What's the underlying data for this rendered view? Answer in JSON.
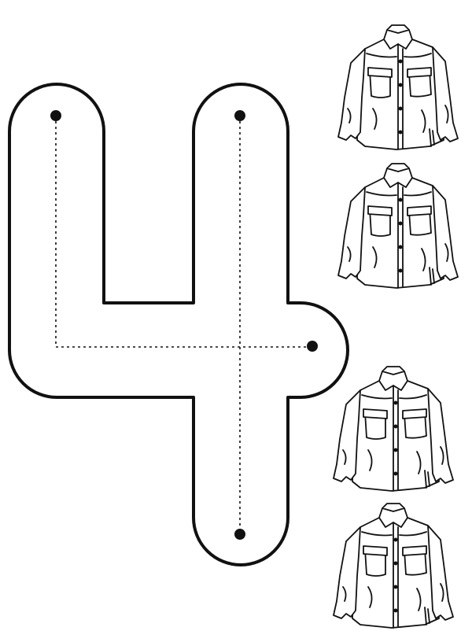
{
  "worksheet": {
    "number_outline": "4",
    "outline_color": "#111111",
    "guide_color": "#111111",
    "guide_style": "dotted",
    "start_dots": 4,
    "counting_items": {
      "item_icon": "shirt-icon",
      "count": 4
    }
  }
}
